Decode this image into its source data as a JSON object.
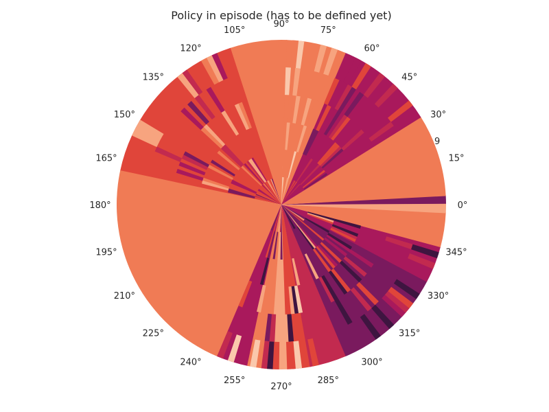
{
  "chart_data": {
    "type": "heatmap",
    "projection": "polar",
    "title": "Policy in episode (has to be defined yet)",
    "theta_tick_labels": [
      "0°",
      "15°",
      "30°",
      "45°",
      "60°",
      "75°",
      "90°",
      "105°",
      "120°",
      "135°",
      "150°",
      "165°",
      "180°",
      "195°",
      "210°",
      "225°",
      "240°",
      "255°",
      "270°",
      "285°",
      "300°",
      "315°",
      "330°",
      "345°"
    ],
    "radial_tick_labels": [
      "9"
    ],
    "grid": false,
    "colormap": "rocket",
    "colors": {
      "dominant": "#f07b55",
      "light": "#f7a47f",
      "pale": "#fac8ac",
      "red": "#e0453a",
      "crimson": "#c22a4f",
      "magenta": "#a9195c",
      "plum": "#7a1a5e",
      "dark": "#3e1540",
      "darkest": "#1a0c1e"
    },
    "sectors": [
      {
        "start_deg": 0,
        "end_deg": 3,
        "value": "plum"
      },
      {
        "start_deg": 3,
        "end_deg": 32,
        "value": "dominant"
      },
      {
        "start_deg": 32,
        "end_deg": 67,
        "value": "magenta"
      },
      {
        "start_deg": 67,
        "end_deg": 88,
        "value": "dominant"
      },
      {
        "start_deg": 88,
        "end_deg": 108,
        "value": "dominant"
      },
      {
        "start_deg": 108,
        "end_deg": 155,
        "value": "red"
      },
      {
        "start_deg": 155,
        "end_deg": 168,
        "value": "red"
      },
      {
        "start_deg": 168,
        "end_deg": 247,
        "value": "dominant"
      },
      {
        "start_deg": 247,
        "end_deg": 258,
        "value": "magenta"
      },
      {
        "start_deg": 258,
        "end_deg": 266,
        "value": "dominant"
      },
      {
        "start_deg": 266,
        "end_deg": 272,
        "value": "light"
      },
      {
        "start_deg": 272,
        "end_deg": 280,
        "value": "red"
      },
      {
        "start_deg": 280,
        "end_deg": 293,
        "value": "crimson"
      },
      {
        "start_deg": 293,
        "end_deg": 332,
        "value": "plum"
      },
      {
        "start_deg": 332,
        "end_deg": 345,
        "value": "magenta"
      },
      {
        "start_deg": 345,
        "end_deg": 357,
        "value": "dominant"
      },
      {
        "start_deg": 357,
        "end_deg": 360,
        "value": "light"
      }
    ]
  }
}
